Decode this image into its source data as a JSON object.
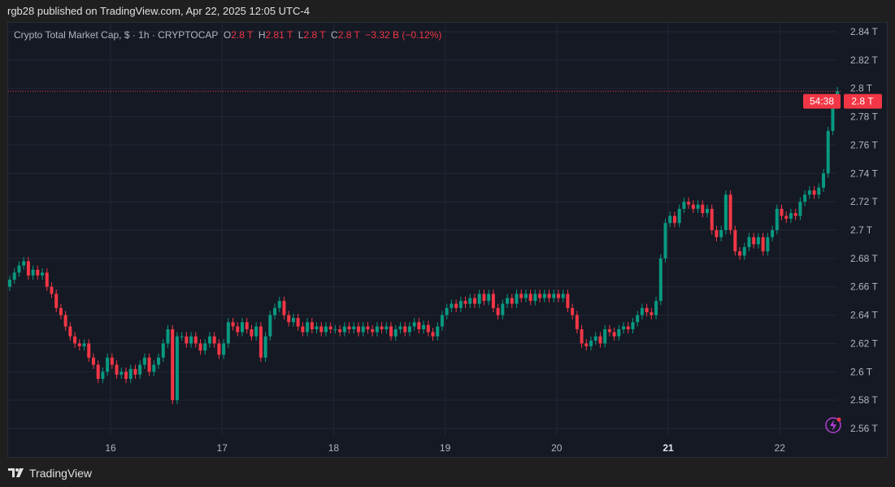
{
  "header": {
    "published": "rgb28 published on TradingView.com, Apr 22, 2025 12:05 UTC-4"
  },
  "legend": {
    "symbol": "Crypto Total Market Cap, $ · 1h · CRYPTOCAP",
    "o_label": "O",
    "o": "2.8 T",
    "h_label": "H",
    "h": "2.81 T",
    "l_label": "L",
    "l": "2.8 T",
    "c_label": "C",
    "c": "2.8 T",
    "change": "−3.32 B (−0.12%)"
  },
  "price_label": {
    "price": "2.8 T",
    "countdown": "54:38",
    "color": "#f23645"
  },
  "footer": {
    "brand": "TradingView"
  },
  "colors": {
    "up": "#089981",
    "down": "#f23645",
    "background": "#151924",
    "grid": "#232734"
  },
  "chart_data": {
    "type": "candlestick",
    "interval": "1h",
    "y_unit": "T",
    "ylim": [
      2.56,
      2.84
    ],
    "y_ticks": [
      "2.84 T",
      "2.82 T",
      "2.8 T",
      "2.78 T",
      "2.76 T",
      "2.74 T",
      "2.72 T",
      "2.7 T",
      "2.68 T",
      "2.66 T",
      "2.64 T",
      "2.62 T",
      "2.6 T",
      "2.58 T",
      "2.56 T"
    ],
    "x_ticks": [
      {
        "label": "16",
        "bold": false
      },
      {
        "label": "17",
        "bold": false
      },
      {
        "label": "18",
        "bold": false
      },
      {
        "label": "19",
        "bold": false
      },
      {
        "label": "20",
        "bold": false
      },
      {
        "label": "21",
        "bold": true
      },
      {
        "label": "22",
        "bold": false
      }
    ],
    "grid": true,
    "first_open": 2.66,
    "close": [
      2.665,
      2.67,
      2.675,
      2.678,
      2.668,
      2.672,
      2.668,
      2.67,
      2.66,
      2.655,
      2.645,
      2.64,
      2.632,
      2.625,
      2.62,
      2.618,
      2.62,
      2.61,
      2.605,
      2.595,
      2.6,
      2.61,
      2.605,
      2.598,
      2.6,
      2.595,
      2.602,
      2.598,
      2.605,
      2.61,
      2.6,
      2.605,
      2.61,
      2.62,
      2.63,
      2.58,
      2.625,
      2.625,
      2.62,
      2.625,
      2.62,
      2.615,
      2.62,
      2.625,
      2.62,
      2.612,
      2.62,
      2.635,
      2.632,
      2.628,
      2.635,
      2.63,
      2.625,
      2.632,
      2.61,
      2.625,
      2.64,
      2.645,
      2.65,
      2.64,
      2.635,
      2.638,
      2.632,
      2.628,
      2.635,
      2.63,
      2.632,
      2.628,
      2.632,
      2.63,
      2.63,
      2.628,
      2.632,
      2.63,
      2.632,
      2.628,
      2.632,
      2.63,
      2.628,
      2.632,
      2.63,
      2.632,
      2.625,
      2.63,
      2.632,
      2.628,
      2.632,
      2.635,
      2.63,
      2.633,
      2.628,
      2.625,
      2.632,
      2.64,
      2.645,
      2.648,
      2.645,
      2.65,
      2.648,
      2.652,
      2.648,
      2.655,
      2.65,
      2.655,
      2.645,
      2.64,
      2.648,
      2.652,
      2.648,
      2.655,
      2.652,
      2.655,
      2.65,
      2.655,
      2.652,
      2.655,
      2.652,
      2.655,
      2.652,
      2.655,
      2.645,
      2.64,
      2.63,
      2.62,
      2.618,
      2.622,
      2.625,
      2.62,
      2.63,
      2.628,
      2.625,
      2.63,
      2.632,
      2.63,
      2.635,
      2.64,
      2.645,
      2.642,
      2.64,
      2.65,
      2.68,
      2.705,
      2.71,
      2.705,
      2.715,
      2.72,
      2.718,
      2.715,
      2.718,
      2.712,
      2.715,
      2.7,
      2.695,
      2.7,
      2.725,
      2.7,
      2.685,
      2.682,
      2.688,
      2.695,
      2.69,
      2.695,
      2.685,
      2.695,
      2.7,
      2.715,
      2.71,
      2.708,
      2.712,
      2.71,
      2.72,
      2.725,
      2.728,
      2.725,
      2.73,
      2.74,
      2.77,
      2.79,
      2.798
    ],
    "last_price": 2.798
  }
}
